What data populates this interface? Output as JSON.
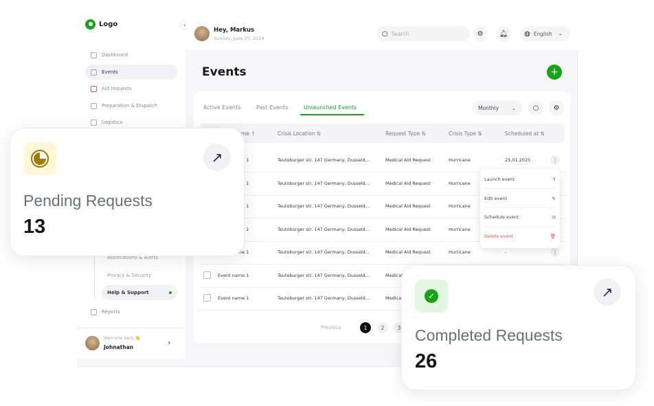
{
  "logo": {
    "text": "Logo"
  },
  "sidebar": {
    "items": [
      {
        "label": "Dashboard"
      },
      {
        "label": "Events"
      },
      {
        "label": "Aid requests"
      },
      {
        "label": "Preparation & Dispatch"
      },
      {
        "label": "Logistics"
      }
    ],
    "sub_items": [
      {
        "label": "Notifications & Alerts"
      },
      {
        "label": "Privacy & Security"
      },
      {
        "label": "Help & Support"
      }
    ],
    "reports": "Reports",
    "footer": {
      "greeting": "Welcome back 👋",
      "name": "Johnathan"
    }
  },
  "header": {
    "greeting": "Hey, Markus",
    "date": "Sunday, June 25, 2024",
    "search_placeholder": "Search",
    "language": "English"
  },
  "page": {
    "title": "Events"
  },
  "tabs": [
    {
      "label": "Active Events"
    },
    {
      "label": "Past Events"
    },
    {
      "label": "Unlaunched Events"
    }
  ],
  "period": "Monthly",
  "table": {
    "columns": [
      "Event Name ↑",
      "Crisis Location ⇅",
      "Request Type ⇅",
      "Crisis Type ⇅",
      "Scheduled at ⇅"
    ],
    "rows": [
      {
        "name": "Event name 1",
        "location": "Teutoburger str. 147 Germany, Dusseld...",
        "request": "Medical Aid Request",
        "crisis": "Hurricane",
        "scheduled": "25.01.2025"
      },
      {
        "name": "Event name 1",
        "location": "Teutoburger str. 147 Germany, Dusseld...",
        "request": "Medical Aid Request",
        "crisis": "Hurricane",
        "scheduled": ""
      },
      {
        "name": "Event name 1",
        "location": "Teutoburger str. 147 Germany, Dusseld...",
        "request": "Medical Aid Request",
        "crisis": "Hurricane",
        "scheduled": ""
      },
      {
        "name": "Event name 1",
        "location": "Teutoburger str. 147 Germany, Dusseld...",
        "request": "Medical Aid Request",
        "crisis": "Hurricane",
        "scheduled": ""
      },
      {
        "name": "Event name 1",
        "location": "Teutoburger str. 147 Germany, Dusseld...",
        "request": "Medical Aid Request",
        "crisis": "Hurricane",
        "scheduled": "-"
      },
      {
        "name": "Event name 1",
        "location": "Teutoburger str. 147 Germany, Dusseld...",
        "request": "Medical Aid Request",
        "crisis": "",
        "scheduled": ""
      },
      {
        "name": "Event name 1",
        "location": "Teutoburger str. 147 Germany, Dusseld...",
        "request": "Medical Aid Request",
        "crisis": "",
        "scheduled": ""
      }
    ]
  },
  "menu": [
    {
      "label": "Launch event",
      "icon": "lightning-icon"
    },
    {
      "label": "Edit event",
      "icon": "pencil-icon"
    },
    {
      "label": "Schedule event",
      "icon": "clock-icon"
    },
    {
      "label": "Delete event",
      "icon": "trash-icon"
    }
  ],
  "pagination": {
    "previous": "Previous",
    "pages": [
      "1",
      "2",
      "3"
    ],
    "current": "1"
  },
  "stats": [
    {
      "label": "Pending Requests",
      "value": "13",
      "color": "#a07c00"
    },
    {
      "label": "Completed Requests",
      "value": "26",
      "color": "#16a316"
    }
  ],
  "colors": {
    "accent": "#16a316",
    "danger": "#f05252"
  }
}
